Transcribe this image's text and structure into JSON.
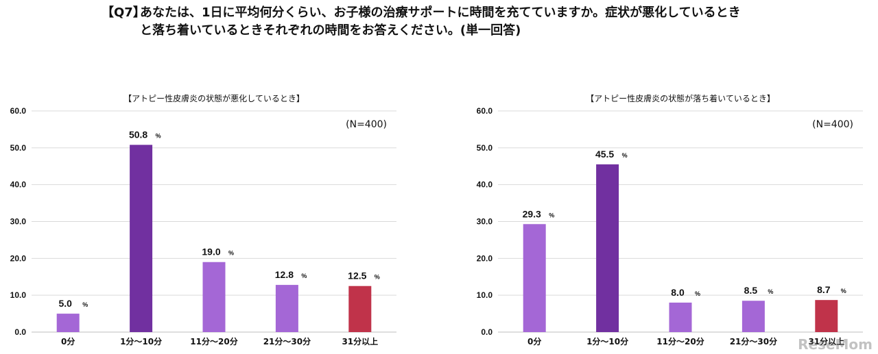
{
  "question": {
    "tag": "【Q7】",
    "text": "あなたは、1日に平均何分くらい、お子様の治療サポートに時間を充てていますか。症状が悪化しているとき\nと落ち着いているときそれぞれの時間をお答えください。(単一回答)"
  },
  "chart_data": [
    {
      "type": "bar",
      "title": "【アトピー性皮膚炎の状態が悪化しているとき】",
      "note": "(N=400)",
      "categories": [
        "0分",
        "1分～10分",
        "11分～20分",
        "21分～30分",
        "31分以上"
      ],
      "values": [
        5.0,
        50.8,
        19.0,
        12.8,
        12.5
      ],
      "value_labels": [
        "5.0",
        "50.8",
        "19.0",
        "12.8",
        "12.5"
      ],
      "unit": "%",
      "colors": [
        "#a467d6",
        "#7130a0",
        "#a467d6",
        "#a467d6",
        "#c0334a"
      ],
      "ylim": [
        0,
        60
      ],
      "yticks": [
        "0.0",
        "10.0",
        "20.0",
        "30.0",
        "40.0",
        "50.0",
        "60.0"
      ],
      "grid": true
    },
    {
      "type": "bar",
      "title": "【アトピー性皮膚炎の状態が落ち着いているとき】",
      "note": "(N=400)",
      "categories": [
        "0分",
        "1分～10分",
        "11分～20分",
        "21分～30分",
        "31分以上"
      ],
      "values": [
        29.3,
        45.5,
        8.0,
        8.5,
        8.7
      ],
      "value_labels": [
        "29.3",
        "45.5",
        "8.0",
        "8.5",
        "8.7"
      ],
      "unit": "%",
      "colors": [
        "#a467d6",
        "#7130a0",
        "#a467d6",
        "#a467d6",
        "#c0334a"
      ],
      "ylim": [
        0,
        60
      ],
      "yticks": [
        "0.0",
        "10.0",
        "20.0",
        "30.0",
        "40.0",
        "50.0",
        "60.0"
      ],
      "grid": true
    }
  ],
  "watermark": "ReseMom"
}
